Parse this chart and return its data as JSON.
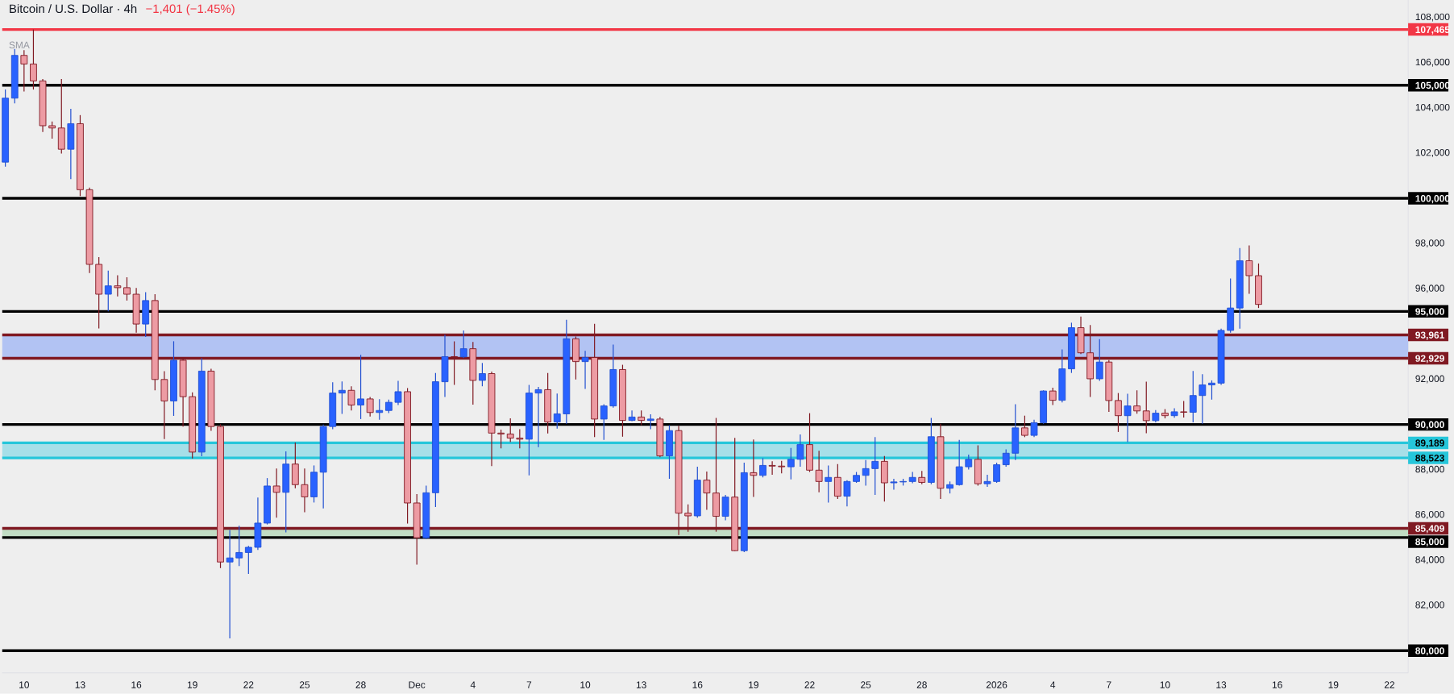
{
  "chart_data": {
    "type": "candlestick",
    "title": "Bitcoin / U.S. Dollar · 4h",
    "subtitle": "−1,401 (−1.45%)",
    "annotations": [
      "SMA"
    ],
    "x": [
      "2025-11-09T00:00",
      "2025-11-09T12:00",
      "2025-11-10T00:00",
      "2025-11-10T12:00",
      "2025-11-11T00:00",
      "2025-11-11T12:00",
      "2025-11-12T00:00",
      "2025-11-12T12:00",
      "2025-11-13T00:00",
      "2025-11-13T12:00",
      "2025-11-14T00:00",
      "2025-11-14T12:00",
      "2025-11-15T00:00",
      "2025-11-15T12:00",
      "2025-11-16T00:00",
      "2025-11-16T12:00",
      "2025-11-17T00:00",
      "2025-11-17T12:00",
      "2025-11-18T00:00",
      "2025-11-18T12:00",
      "2025-11-19T00:00",
      "2025-11-19T12:00",
      "2025-11-20T00:00",
      "2025-11-20T12:00",
      "2025-11-21T00:00",
      "2025-11-21T12:00",
      "2025-11-22T00:00",
      "2025-11-22T12:00",
      "2025-11-23T00:00",
      "2025-11-23T12:00",
      "2025-11-24T00:00",
      "2025-11-24T12:00",
      "2025-11-25T00:00",
      "2025-11-25T12:00",
      "2025-11-26T00:00",
      "2025-11-26T12:00",
      "2025-11-27T00:00",
      "2025-11-27T12:00",
      "2025-11-28T00:00",
      "2025-11-28T12:00",
      "2025-11-29T00:00",
      "2025-11-29T12:00",
      "2025-11-30T00:00",
      "2025-11-30T12:00",
      "2025-12-01T00:00",
      "2025-12-01T12:00",
      "2025-12-02T00:00",
      "2025-12-02T12:00",
      "2025-12-03T00:00",
      "2025-12-03T12:00",
      "2025-12-04T00:00",
      "2025-12-04T12:00",
      "2025-12-05T00:00",
      "2025-12-05T12:00",
      "2025-12-06T00:00",
      "2025-12-06T12:00",
      "2025-12-07T00:00",
      "2025-12-07T12:00",
      "2025-12-08T00:00",
      "2025-12-08T12:00",
      "2025-12-09T00:00",
      "2025-12-09T12:00",
      "2025-12-10T00:00",
      "2025-12-10T12:00",
      "2025-12-11T00:00",
      "2025-12-11T12:00",
      "2025-12-12T00:00",
      "2025-12-12T12:00",
      "2025-12-13T00:00",
      "2025-12-13T12:00",
      "2025-12-14T00:00",
      "2025-12-14T12:00",
      "2025-12-15T00:00",
      "2025-12-15T12:00",
      "2025-12-16T00:00",
      "2025-12-16T12:00",
      "2025-12-17T00:00",
      "2025-12-17T12:00",
      "2025-12-18T00:00",
      "2025-12-18T12:00",
      "2025-12-19T00:00",
      "2025-12-19T12:00",
      "2025-12-20T00:00",
      "2025-12-20T12:00",
      "2025-12-21T00:00",
      "2025-12-21T12:00",
      "2025-12-22T00:00",
      "2025-12-22T12:00",
      "2025-12-23T00:00",
      "2025-12-23T12:00",
      "2025-12-24T00:00",
      "2025-12-24T12:00",
      "2025-12-25T00:00",
      "2025-12-25T12:00",
      "2025-12-26T00:00",
      "2025-12-26T12:00",
      "2025-12-27T00:00",
      "2025-12-27T12:00",
      "2025-12-28T00:00",
      "2025-12-28T12:00",
      "2025-12-29T00:00",
      "2025-12-29T12:00",
      "2025-12-30T00:00",
      "2025-12-30T12:00",
      "2025-12-31T00:00",
      "2025-12-31T12:00",
      "2026-01-01T00:00",
      "2026-01-01T12:00",
      "2026-01-02T00:00",
      "2026-01-02T12:00",
      "2026-01-03T00:00",
      "2026-01-03T12:00",
      "2026-01-04T00:00",
      "2026-01-04T12:00",
      "2026-01-05T00:00",
      "2026-01-05T12:00",
      "2026-01-06T00:00",
      "2026-01-06T12:00",
      "2026-01-07T00:00",
      "2026-01-07T12:00",
      "2026-01-08T00:00",
      "2026-01-08T12:00",
      "2026-01-09T00:00",
      "2026-01-09T12:00",
      "2026-01-10T00:00",
      "2026-01-10T12:00",
      "2026-01-11T00:00",
      "2026-01-11T12:00",
      "2026-01-12T00:00",
      "2026-01-12T12:00",
      "2026-01-13T00:00",
      "2026-01-13T12:00",
      "2026-01-14T00:00",
      "2026-01-14T12:00",
      "2026-01-15T00:00"
    ],
    "ohlc": [
      [
        101600,
        104810,
        101400,
        104430
      ],
      [
        104430,
        106600,
        104200,
        106320
      ],
      [
        106320,
        106550,
        104720,
        105940
      ],
      [
        105940,
        107465,
        104810,
        105190
      ],
      [
        105190,
        105280,
        102930,
        103210
      ],
      [
        103210,
        103400,
        102640,
        103110
      ],
      [
        103110,
        105280,
        101980,
        102170
      ],
      [
        102170,
        103960,
        100850,
        103300
      ],
      [
        103300,
        103680,
        100100,
        100380
      ],
      [
        100380,
        100470,
        96700,
        97080
      ],
      [
        97080,
        97400,
        94250,
        95760
      ],
      [
        95760,
        96800,
        95000,
        96130
      ],
      [
        96130,
        96600,
        95660,
        96050
      ],
      [
        96050,
        96510,
        95480,
        95760
      ],
      [
        95760,
        96040,
        94060,
        94440
      ],
      [
        94440,
        95850,
        93870,
        95480
      ],
      [
        95480,
        95760,
        91510,
        91990
      ],
      [
        91990,
        92360,
        89350,
        91040
      ],
      [
        91040,
        93680,
        90380,
        92840
      ],
      [
        92840,
        92930,
        89910,
        91230
      ],
      [
        91230,
        91420,
        88500,
        88780
      ],
      [
        88780,
        92930,
        88600,
        92360
      ],
      [
        92360,
        92460,
        89720,
        89910
      ],
      [
        89910,
        90010,
        83650,
        83920
      ],
      [
        83920,
        85340,
        80540,
        84100
      ],
      [
        84100,
        85520,
        83740,
        84340
      ],
      [
        84340,
        84630,
        83390,
        84570
      ],
      [
        84570,
        86770,
        84450,
        85640
      ],
      [
        85640,
        87630,
        85580,
        87280
      ],
      [
        87280,
        88050,
        85880,
        87000
      ],
      [
        87000,
        88810,
        85230,
        88250
      ],
      [
        88250,
        89200,
        87180,
        87340
      ],
      [
        87340,
        88050,
        86120,
        86800
      ],
      [
        86800,
        88190,
        86550,
        87890
      ],
      [
        87890,
        90000,
        86290,
        89910
      ],
      [
        89910,
        91870,
        89790,
        91390
      ],
      [
        91390,
        91900,
        90470,
        91510
      ],
      [
        91510,
        91690,
        90620,
        90860
      ],
      [
        90860,
        93080,
        90240,
        91130
      ],
      [
        91130,
        91220,
        90350,
        90530
      ],
      [
        90530,
        91120,
        90210,
        90620
      ],
      [
        90620,
        91100,
        90500,
        90980
      ],
      [
        90980,
        91930,
        90860,
        91450
      ],
      [
        91450,
        91610,
        85620,
        86530
      ],
      [
        86530,
        86920,
        83800,
        84990
      ],
      [
        84990,
        87300,
        84930,
        86980
      ],
      [
        86980,
        92280,
        86350,
        91890
      ],
      [
        91890,
        93970,
        91220,
        93000
      ],
      [
        93000,
        93680,
        91750,
        92990
      ],
      [
        92990,
        94160,
        92940,
        93350
      ],
      [
        93350,
        93650,
        90880,
        91950
      ],
      [
        91950,
        92720,
        91690,
        92250
      ],
      [
        92250,
        92340,
        88160,
        89620
      ],
      [
        89620,
        89770,
        88940,
        89580
      ],
      [
        89580,
        90270,
        89220,
        89400
      ],
      [
        89400,
        89790,
        88940,
        89350
      ],
      [
        89350,
        91750,
        87750,
        91390
      ],
      [
        91390,
        91660,
        89000,
        91540
      ],
      [
        91540,
        92280,
        89600,
        90110
      ],
      [
        90110,
        91370,
        89820,
        90470
      ],
      [
        90470,
        94630,
        90030,
        93790
      ],
      [
        93790,
        93890,
        91990,
        92780
      ],
      [
        92780,
        93260,
        91570,
        92960
      ],
      [
        92960,
        94450,
        89440,
        90240
      ],
      [
        90240,
        90900,
        89320,
        90820
      ],
      [
        90820,
        93530,
        90740,
        92430
      ],
      [
        92430,
        92640,
        89460,
        90180
      ],
      [
        90180,
        90620,
        90150,
        90330
      ],
      [
        90330,
        90620,
        89970,
        90180
      ],
      [
        90180,
        90450,
        89790,
        90240
      ],
      [
        90240,
        90330,
        88550,
        88610
      ],
      [
        88610,
        89970,
        87600,
        89730
      ],
      [
        89730,
        89940,
        85110,
        86080
      ],
      [
        86080,
        86470,
        85260,
        85960
      ],
      [
        85960,
        88130,
        85880,
        87540
      ],
      [
        87540,
        87920,
        86230,
        86970
      ],
      [
        86970,
        90290,
        85260,
        85940
      ],
      [
        85940,
        86890,
        85760,
        86790
      ],
      [
        86790,
        89410,
        84400,
        84420
      ],
      [
        84420,
        88310,
        84360,
        87870
      ],
      [
        87870,
        89340,
        86800,
        87750
      ],
      [
        87750,
        88510,
        87660,
        88190
      ],
      [
        88190,
        88370,
        87780,
        88160
      ],
      [
        88160,
        88390,
        87840,
        88130
      ],
      [
        88130,
        88960,
        87570,
        88460
      ],
      [
        88460,
        89560,
        88130,
        89110
      ],
      [
        89110,
        90500,
        87900,
        87980
      ],
      [
        87980,
        88840,
        87000,
        87480
      ],
      [
        87480,
        88190,
        86550,
        87660
      ],
      [
        87660,
        88250,
        86710,
        86830
      ],
      [
        86830,
        87540,
        86380,
        87480
      ],
      [
        87480,
        87900,
        87420,
        87750
      ],
      [
        87750,
        88430,
        87300,
        88050
      ],
      [
        88050,
        89440,
        86890,
        88370
      ],
      [
        88370,
        88610,
        86590,
        87420
      ],
      [
        87420,
        87600,
        87120,
        87460
      ],
      [
        87460,
        87600,
        87300,
        87480
      ],
      [
        87480,
        87900,
        87400,
        87660
      ],
      [
        87660,
        87950,
        87360,
        87440
      ],
      [
        87440,
        90290,
        87360,
        89460
      ],
      [
        89460,
        90030,
        86710,
        87180
      ],
      [
        87180,
        87480,
        86950,
        87340
      ],
      [
        87340,
        89320,
        87300,
        88130
      ],
      [
        88130,
        88670,
        88010,
        88460
      ],
      [
        88460,
        89080,
        87300,
        87380
      ],
      [
        87380,
        87780,
        87240,
        87480
      ],
      [
        87480,
        88310,
        87420,
        88220
      ],
      [
        88220,
        88900,
        88130,
        88730
      ],
      [
        88730,
        90900,
        88430,
        89850
      ],
      [
        89850,
        90390,
        89440,
        89520
      ],
      [
        89520,
        90210,
        89440,
        90080
      ],
      [
        90080,
        91510,
        90030,
        91480
      ],
      [
        91480,
        91630,
        90860,
        91070
      ],
      [
        91070,
        93320,
        90980,
        92460
      ],
      [
        92460,
        94500,
        92280,
        94280
      ],
      [
        94280,
        94770,
        93110,
        93170
      ],
      [
        93170,
        94400,
        91220,
        92020
      ],
      [
        92020,
        93770,
        91930,
        92760
      ],
      [
        92760,
        92850,
        90560,
        91060
      ],
      [
        91060,
        91390,
        89670,
        90390
      ],
      [
        90390,
        91360,
        89220,
        90820
      ],
      [
        90820,
        91510,
        90480,
        90600
      ],
      [
        90600,
        91890,
        89610,
        90170
      ],
      [
        90170,
        90640,
        90090,
        90500
      ],
      [
        90500,
        90680,
        90270,
        90390
      ],
      [
        90390,
        90720,
        90300,
        90560
      ],
      [
        90560,
        91040,
        90310,
        90540
      ],
      [
        90540,
        92370,
        90090,
        91280
      ],
      [
        91280,
        92220,
        90030,
        91750
      ],
      [
        91750,
        91950,
        91100,
        91830
      ],
      [
        91830,
        94240,
        91750,
        94160
      ],
      [
        94160,
        96460,
        94060,
        95150
      ],
      [
        95150,
        97800,
        94240,
        97240
      ],
      [
        97240,
        97920,
        95780,
        96580
      ],
      [
        96580,
        97120,
        95150,
        95310
      ]
    ],
    "colors": [
      "#2962ff",
      "#2962ff",
      "#801922",
      "#801922",
      "#801922",
      "#801922",
      "#801922",
      "#2962ff",
      "#801922",
      "#801922",
      "#801922",
      "#2962ff",
      "#801922",
      "#801922",
      "#801922",
      "#2962ff",
      "#801922",
      "#801922",
      "#2962ff",
      "#801922",
      "#801922",
      "#2962ff",
      "#801922",
      "#801922",
      "#2962ff",
      "#2962ff",
      "#2962ff",
      "#2962ff",
      "#2962ff",
      "#801922",
      "#2962ff",
      "#801922",
      "#801922",
      "#2962ff",
      "#2962ff",
      "#2962ff",
      "#2962ff",
      "#801922",
      "#2962ff",
      "#801922",
      "#2962ff",
      "#2962ff",
      "#2962ff",
      "#801922",
      "#801922",
      "#2962ff",
      "#2962ff",
      "#2962ff",
      "#801922",
      "#2962ff",
      "#801922",
      "#2962ff",
      "#801922",
      "#801922",
      "#801922",
      "#801922",
      "#2962ff",
      "#2962ff",
      "#801922",
      "#2962ff",
      "#2962ff",
      "#801922",
      "#2962ff",
      "#801922",
      "#2962ff",
      "#2962ff",
      "#801922",
      "#2962ff",
      "#801922",
      "#2962ff",
      "#801922",
      "#2962ff",
      "#801922",
      "#801922",
      "#2962ff",
      "#801922",
      "#801922",
      "#2962ff",
      "#801922",
      "#2962ff",
      "#801922",
      "#2962ff",
      "#801922",
      "#801922",
      "#2962ff",
      "#2962ff",
      "#801922",
      "#801922",
      "#2962ff",
      "#801922",
      "#2962ff",
      "#2962ff",
      "#2962ff",
      "#2962ff",
      "#801922",
      "#2962ff",
      "#2962ff",
      "#2962ff",
      "#801922",
      "#2962ff",
      "#801922",
      "#2962ff",
      "#2962ff",
      "#2962ff",
      "#801922",
      "#2962ff",
      "#2962ff",
      "#2962ff",
      "#2962ff",
      "#801922",
      "#2962ff",
      "#2962ff",
      "#801922",
      "#2962ff",
      "#2962ff",
      "#801922",
      "#801922",
      "#2962ff",
      "#801922",
      "#801922",
      "#2962ff",
      "#801922",
      "#801922",
      "#2962ff",
      "#801922",
      "#2962ff",
      "#801922",
      "#2962ff",
      "#2962ff",
      "#2962ff",
      "#2962ff",
      "#2962ff",
      "#2962ff",
      "#801922",
      "#801922"
    ],
    "xlim": [
      "2025-11-08T20:00",
      "2026-01-23T00:00"
    ],
    "xticks": [
      {
        "value": "2025-11-10",
        "label": "10"
      },
      {
        "value": "2025-11-13",
        "label": "13"
      },
      {
        "value": "2025-11-16",
        "label": "16"
      },
      {
        "value": "2025-11-19",
        "label": "19"
      },
      {
        "value": "2025-11-22",
        "label": "22"
      },
      {
        "value": "2025-11-25",
        "label": "25"
      },
      {
        "value": "2025-11-28",
        "label": "28"
      },
      {
        "value": "2025-12-01",
        "label": "Dec"
      },
      {
        "value": "2025-12-04",
        "label": "4"
      },
      {
        "value": "2025-12-07",
        "label": "7"
      },
      {
        "value": "2025-12-10",
        "label": "10"
      },
      {
        "value": "2025-12-13",
        "label": "13"
      },
      {
        "value": "2025-12-16",
        "label": "16"
      },
      {
        "value": "2025-12-19",
        "label": "19"
      },
      {
        "value": "2025-12-22",
        "label": "22"
      },
      {
        "value": "2025-12-25",
        "label": "25"
      },
      {
        "value": "2025-12-28",
        "label": "28"
      },
      {
        "value": "2026-01-01",
        "label": "2026"
      },
      {
        "value": "2026-01-04",
        "label": "4"
      },
      {
        "value": "2026-01-07",
        "label": "7"
      },
      {
        "value": "2026-01-10",
        "label": "10"
      },
      {
        "value": "2026-01-13",
        "label": "13"
      },
      {
        "value": "2026-01-16",
        "label": "16"
      },
      {
        "value": "2026-01-19",
        "label": "19"
      },
      {
        "value": "2026-01-22",
        "label": "22"
      }
    ],
    "ylim": [
      79020,
      108770
    ],
    "yticks": [
      {
        "value": 82000,
        "label": "82,000"
      },
      {
        "value": 84000,
        "label": "84,000"
      },
      {
        "value": 86000,
        "label": "86,000"
      },
      {
        "value": 88000,
        "label": "88,000"
      },
      {
        "value": 92000,
        "label": "92,000"
      },
      {
        "value": 96000,
        "label": "96,000"
      },
      {
        "value": 98000,
        "label": "98,000"
      },
      {
        "value": 102000,
        "label": "102,000"
      },
      {
        "value": 104000,
        "label": "104,000"
      },
      {
        "value": 106000,
        "label": "106,000"
      },
      {
        "value": 108000,
        "label": "108,000"
      }
    ],
    "bands": [
      {
        "axis": "y",
        "from": 92929,
        "to": 93961,
        "color": "#b2c3f3"
      },
      {
        "axis": "y",
        "from": 88523,
        "to": 89189,
        "color": "#a6dfe8"
      },
      {
        "axis": "y",
        "from": 85000,
        "to": 85409,
        "color": "#c1dcc4"
      }
    ],
    "ref_lines": [
      {
        "axis": "y",
        "value": 107465,
        "label": "107,465",
        "color": "#f23645"
      },
      {
        "axis": "y",
        "value": 105000,
        "label": "105,000",
        "color": "#000000"
      },
      {
        "axis": "y",
        "value": 100000,
        "label": "100,000",
        "color": "#000000"
      },
      {
        "axis": "y",
        "value": 95000,
        "label": "95,000",
        "color": "#000000"
      },
      {
        "axis": "y",
        "value": 93961,
        "label": "93,961",
        "color": "#801922"
      },
      {
        "axis": "y",
        "value": 92929,
        "label": "92,929",
        "color": "#801922"
      },
      {
        "axis": "y",
        "value": 90000,
        "label": "90,000",
        "color": "#000000"
      },
      {
        "axis": "y",
        "value": 89189,
        "label": "89,189",
        "color": "#26c6da"
      },
      {
        "axis": "y",
        "value": 88523,
        "label": "88,523",
        "color": "#26c6da"
      },
      {
        "axis": "y",
        "value": 85409,
        "label": "85,409",
        "color": "#801922"
      },
      {
        "axis": "y",
        "value": 85000,
        "label": "85,000",
        "color": "#000000"
      },
      {
        "axis": "y",
        "value": 80000,
        "label": "80,000",
        "color": "#000000"
      }
    ]
  }
}
